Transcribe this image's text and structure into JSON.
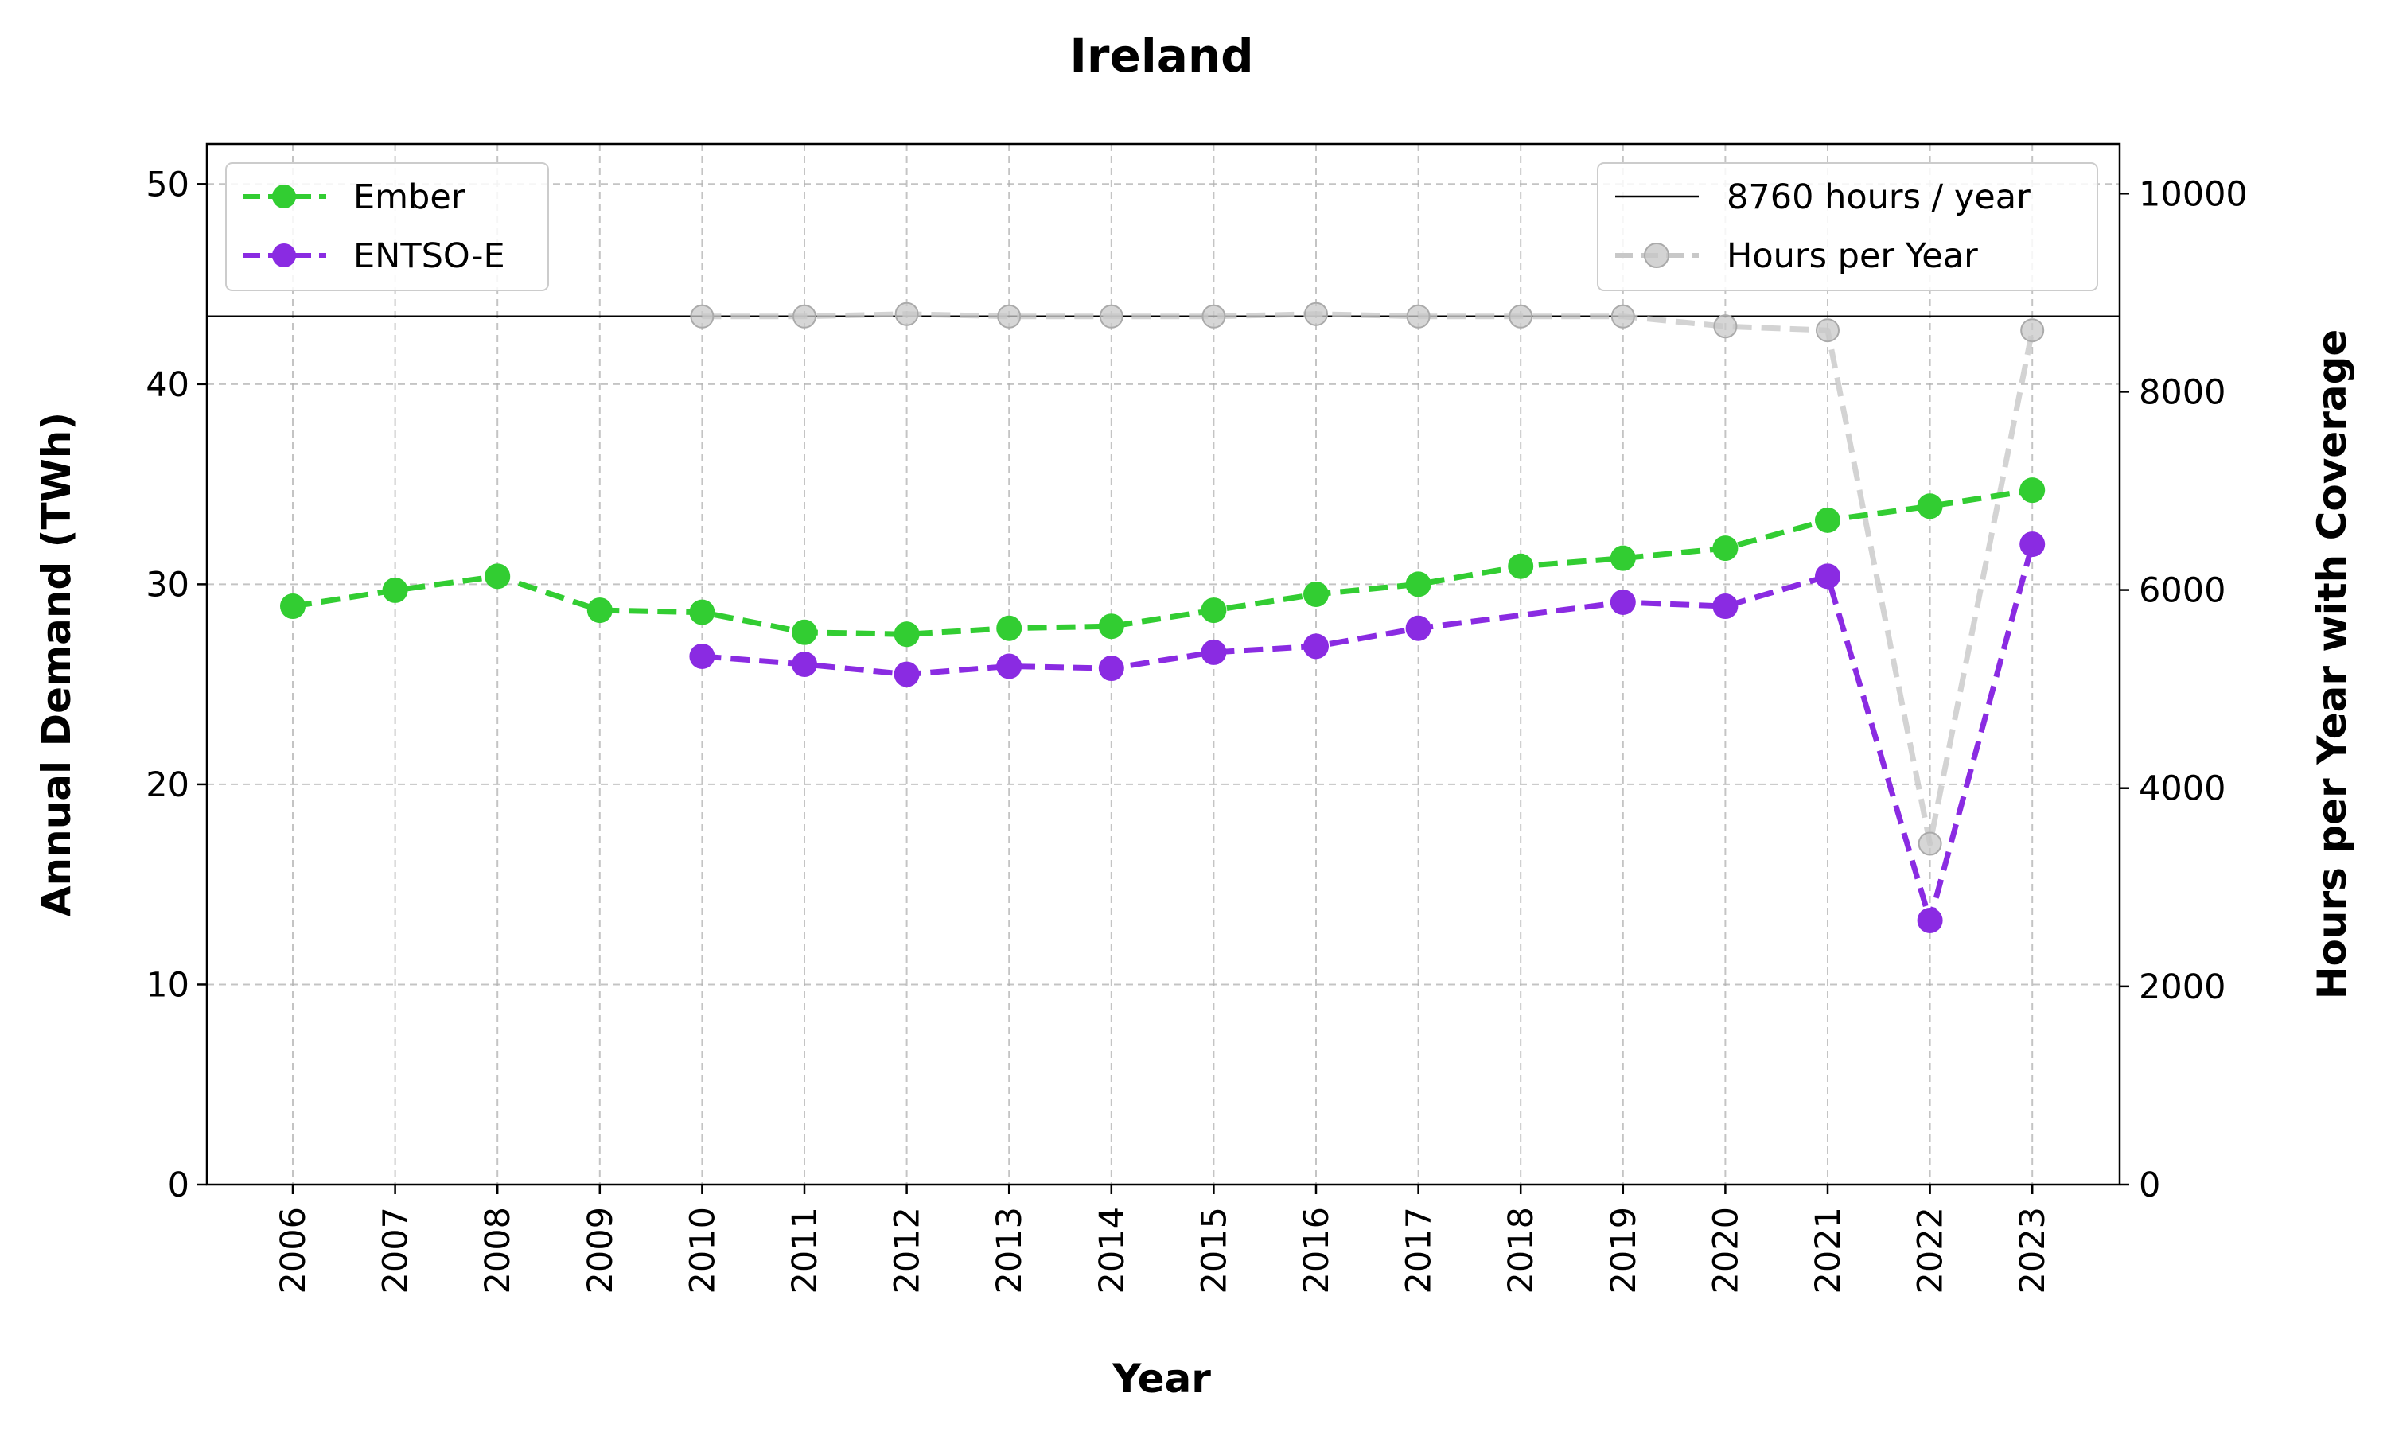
{
  "chart_data": {
    "type": "line",
    "title": "Ireland",
    "xlabel": "Year",
    "ylabel": "Annual Demand (TWh)",
    "y2label": "Hours per Year with Coverage",
    "categories": [
      "2006",
      "2007",
      "2008",
      "2009",
      "2010",
      "2011",
      "2012",
      "2013",
      "2014",
      "2015",
      "2016",
      "2017",
      "2018",
      "2019",
      "2020",
      "2021",
      "2022",
      "2023"
    ],
    "ylim": [
      0,
      52
    ],
    "y2lim": [
      0,
      10500
    ],
    "yticks": [
      0,
      10,
      20,
      30,
      40,
      50
    ],
    "y2ticks": [
      0,
      2000,
      4000,
      6000,
      8000,
      10000
    ],
    "grid": true,
    "series": [
      {
        "name": "Ember",
        "axis": "left",
        "color": "#32cd32",
        "style": "dashed-marker",
        "values": [
          28.9,
          29.7,
          30.4,
          28.7,
          28.6,
          27.6,
          27.5,
          27.8,
          27.9,
          28.7,
          29.5,
          30.0,
          30.9,
          31.3,
          31.8,
          33.2,
          33.9,
          34.7
        ]
      },
      {
        "name": "ENTSO-E",
        "axis": "left",
        "color": "#8a2be2",
        "style": "dashed-marker",
        "values": [
          null,
          null,
          null,
          null,
          26.4,
          26.0,
          25.5,
          25.9,
          25.8,
          26.6,
          26.9,
          27.8,
          null,
          29.1,
          28.9,
          30.4,
          13.2,
          32.0
        ]
      },
      {
        "name": "Hours per Year",
        "axis": "right",
        "color": "#c8c8c8",
        "style": "dashed-marker",
        "values": [
          null,
          null,
          null,
          null,
          8760,
          8760,
          8784,
          8760,
          8760,
          8760,
          8784,
          8760,
          8760,
          8760,
          8660,
          8620,
          3440,
          8620
        ]
      }
    ],
    "reference_lines": [
      {
        "name": "8760 hours / year",
        "axis": "right",
        "value": 8760,
        "color": "#000000"
      }
    ],
    "legend_left": [
      "Ember",
      "ENTSO-E"
    ],
    "legend_right": [
      "8760 hours / year",
      "Hours per Year"
    ],
    "legend_left_position": "upper-left",
    "legend_right_position": "upper-right"
  }
}
